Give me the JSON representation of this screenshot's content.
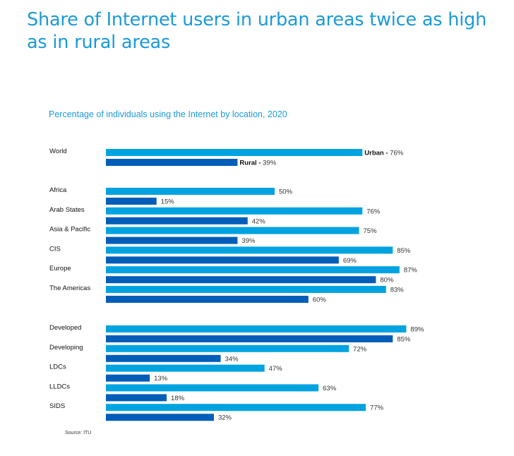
{
  "title": "Share of Internet users in urban areas twice as high as in rural areas",
  "chart_data": {
    "type": "bar",
    "orientation": "horizontal",
    "title": "Percentage of individuals using the Internet by location, 2020",
    "categories": [
      "World",
      "Africa",
      "Arab States",
      "Asia & Pacific",
      "CIS",
      "Europe",
      "The Americas",
      "Developed",
      "Developing",
      "LDCs",
      "LLDCs",
      "SIDS"
    ],
    "groups": [
      [
        "World"
      ],
      [
        "Africa",
        "Arab States",
        "Asia & Pacific",
        "CIS",
        "Europe",
        "The Americas"
      ],
      [
        "Developed",
        "Developing",
        "LDCs",
        "LLDCs",
        "SIDS"
      ]
    ],
    "series": [
      {
        "name": "Urban",
        "color": "#00a3e0",
        "values": [
          76,
          50,
          76,
          75,
          85,
          87,
          83,
          89,
          72,
          47,
          63,
          77
        ]
      },
      {
        "name": "Rural",
        "color": "#005eb8",
        "values": [
          39,
          15,
          42,
          39,
          69,
          80,
          60,
          85,
          34,
          13,
          18,
          32
        ]
      }
    ],
    "unit": "%",
    "xlim": [
      0,
      100
    ],
    "grid": false,
    "source": "Source: ITU"
  }
}
